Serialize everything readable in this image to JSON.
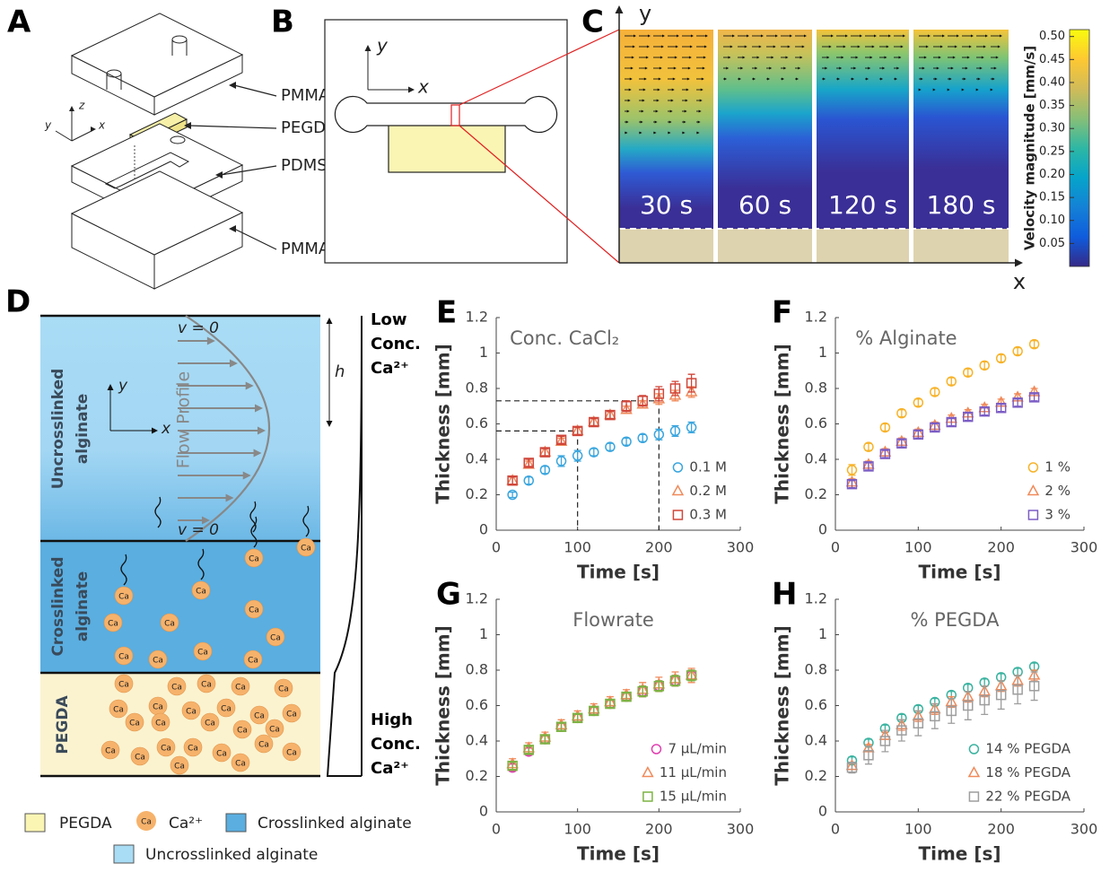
{
  "panel_labels": [
    "A",
    "B",
    "C",
    "D",
    "E",
    "F",
    "G",
    "H"
  ],
  "panel_a": {
    "layers": [
      "PMMA",
      "PEGDA",
      "PDMS",
      "PMMA"
    ],
    "axes": [
      "z",
      "y",
      "x"
    ]
  },
  "panel_b": {
    "axes": [
      "x",
      "y"
    ]
  },
  "panel_c": {
    "times": [
      "30 s",
      "60 s",
      "120 s",
      "180 s"
    ],
    "axes": [
      "y",
      "x"
    ],
    "colorbar": {
      "label": "Velocity magnitude [mm/s]",
      "lim": [
        0,
        0.515
      ],
      "ticks": [
        0.05,
        {
          "value": 0.1,
          "label": "0.10"
        },
        0.15,
        {
          "value": 0.2,
          "label": "0.20"
        },
        0.25,
        {
          "value": 0.3,
          "label": "0.30"
        },
        0.35,
        {
          "value": 0.4,
          "label": "0.40"
        },
        0.45,
        {
          "value": 0.5,
          "label": "0.50"
        }
      ],
      "colors": [
        "#352a87",
        "#0f5cdd",
        "#1481d6",
        "#06a4ca",
        "#2eb7a4",
        "#87bf77",
        "#d1bb59",
        "#fec832",
        "#f9fb0e"
      ]
    }
  },
  "panel_d": {
    "zero_velocity": "v = 0",
    "height": "h",
    "flow_label": "Flow Profile",
    "axes": [
      "y",
      "x"
    ],
    "regions": [
      [
        "Uncrosslinked",
        "alginate"
      ],
      [
        "Crosslinked",
        "alginate"
      ],
      [
        "PEGDA"
      ]
    ],
    "low": [
      "Low",
      "Conc.",
      "Ca²⁺"
    ],
    "high": [
      "High",
      "Conc.",
      "Ca²⁺"
    ],
    "ion": "Ca"
  },
  "legend": [
    "PEGDA",
    "Ca²⁺",
    "Crosslinked alginate",
    "Uncrosslinked alginate"
  ],
  "chart_data": [
    {
      "type": "scatter",
      "title": "Conc. CaCl₂",
      "xlabel": "Time [s]",
      "ylabel": "Thickness [mm]",
      "x": [
        20,
        40,
        60,
        80,
        100,
        120,
        140,
        160,
        180,
        200,
        220,
        240
      ],
      "xlim": [
        0,
        300
      ],
      "xticks": [
        0,
        100,
        200,
        300
      ],
      "ylim": [
        0,
        1.2
      ],
      "yticks": [
        0,
        0.2,
        0.4,
        0.6,
        0.8,
        1,
        1.2
      ],
      "legend": "lower right",
      "reference_lines": [
        {
          "x": 100,
          "y": 0.56
        },
        {
          "x": 200,
          "y": 0.73
        }
      ],
      "series": [
        {
          "name": "0.1 M",
          "color": "#3ba6de",
          "marker": "circle",
          "values": [
            0.2,
            0.28,
            0.34,
            0.39,
            0.42,
            0.44,
            0.47,
            0.5,
            0.52,
            0.54,
            0.56,
            0.58
          ],
          "errors": [
            0.015,
            0.02,
            0.02,
            0.03,
            0.03,
            0.02,
            0.02,
            0.02,
            0.02,
            0.03,
            0.03,
            0.03
          ]
        },
        {
          "name": "0.2 M",
          "color": "#f08a5a",
          "marker": "triangle",
          "values": [
            0.28,
            0.37,
            0.44,
            0.5,
            0.56,
            0.61,
            0.65,
            0.68,
            0.71,
            0.74,
            0.76,
            0.78
          ],
          "errors": [
            0.02,
            0.02,
            0.02,
            0.02,
            0.02,
            0.02,
            0.02,
            0.02,
            0.02,
            0.03,
            0.03,
            0.03
          ]
        },
        {
          "name": "0.3 M",
          "color": "#d0463a",
          "marker": "square",
          "values": [
            0.28,
            0.38,
            0.44,
            0.51,
            0.56,
            0.61,
            0.65,
            0.7,
            0.73,
            0.77,
            0.8,
            0.83
          ],
          "errors": [
            0.02,
            0.02,
            0.02,
            0.02,
            0.02,
            0.02,
            0.02,
            0.03,
            0.03,
            0.04,
            0.04,
            0.05
          ]
        }
      ]
    },
    {
      "type": "scatter",
      "title": "% Alginate",
      "xlabel": "Time [s]",
      "ylabel": "Thickness [mm]",
      "x": [
        20,
        40,
        60,
        80,
        100,
        120,
        140,
        160,
        180,
        200,
        220,
        240
      ],
      "xlim": [
        0,
        300
      ],
      "xticks": [
        0,
        100,
        200,
        300
      ],
      "ylim": [
        0,
        1.2
      ],
      "yticks": [
        0,
        0.2,
        0.4,
        0.6,
        0.8,
        1,
        1.2
      ],
      "legend": "lower right",
      "series": [
        {
          "name": "1 %",
          "color": "#f7b32b",
          "marker": "circle",
          "values": [
            0.34,
            0.47,
            0.58,
            0.66,
            0.72,
            0.78,
            0.84,
            0.89,
            0.93,
            0.97,
            1.01,
            1.05
          ],
          "errors": [
            0.03,
            0.02,
            0.02,
            0.02,
            0.02,
            0.02,
            0.02,
            0.02,
            0.02,
            0.02,
            0.02,
            0.02
          ]
        },
        {
          "name": "2 %",
          "color": "#f08a5a",
          "marker": "triangle",
          "values": [
            0.27,
            0.37,
            0.44,
            0.5,
            0.55,
            0.59,
            0.63,
            0.66,
            0.69,
            0.72,
            0.75,
            0.78
          ],
          "errors": [
            0.02,
            0.02,
            0.02,
            0.02,
            0.02,
            0.02,
            0.02,
            0.02,
            0.02,
            0.02,
            0.02,
            0.02
          ]
        },
        {
          "name": "3 %",
          "color": "#7b5cc4",
          "marker": "square",
          "values": [
            0.26,
            0.36,
            0.43,
            0.49,
            0.54,
            0.58,
            0.61,
            0.64,
            0.67,
            0.69,
            0.72,
            0.75
          ],
          "errors": [
            0.02,
            0.02,
            0.02,
            0.02,
            0.02,
            0.02,
            0.02,
            0.02,
            0.02,
            0.02,
            0.02,
            0.02
          ]
        }
      ]
    },
    {
      "type": "scatter",
      "title": "Flowrate",
      "xlabel": "Time [s]",
      "ylabel": "Thickness [mm]",
      "x": [
        20,
        40,
        60,
        80,
        100,
        120,
        140,
        160,
        180,
        200,
        220,
        240
      ],
      "xlim": [
        0,
        300
      ],
      "xticks": [
        0,
        100,
        200,
        300
      ],
      "ylim": [
        0,
        1.2
      ],
      "yticks": [
        0,
        0.2,
        0.4,
        0.6,
        0.8,
        1,
        1.2
      ],
      "legend": "lower right",
      "series": [
        {
          "name": "7 µL/min",
          "color": "#e040b0",
          "marker": "circle",
          "values": [
            0.25,
            0.34,
            0.41,
            0.48,
            0.53,
            0.57,
            0.61,
            0.65,
            0.68,
            0.71,
            0.74,
            0.77
          ],
          "errors": [
            0.02,
            0.02,
            0.02,
            0.02,
            0.02,
            0.02,
            0.02,
            0.02,
            0.03,
            0.03,
            0.03,
            0.03
          ]
        },
        {
          "name": "11 µL/min",
          "color": "#f08a5a",
          "marker": "triangle",
          "values": [
            0.27,
            0.36,
            0.42,
            0.49,
            0.54,
            0.58,
            0.62,
            0.66,
            0.69,
            0.72,
            0.75,
            0.77
          ],
          "errors": [
            0.03,
            0.03,
            0.03,
            0.03,
            0.03,
            0.03,
            0.03,
            0.03,
            0.04,
            0.04,
            0.04,
            0.04
          ]
        },
        {
          "name": "15 µL/min",
          "color": "#7cb342",
          "marker": "square",
          "values": [
            0.26,
            0.35,
            0.41,
            0.48,
            0.53,
            0.57,
            0.61,
            0.65,
            0.68,
            0.71,
            0.74,
            0.77
          ],
          "errors": [
            0.02,
            0.02,
            0.02,
            0.02,
            0.02,
            0.02,
            0.02,
            0.02,
            0.03,
            0.03,
            0.03,
            0.03
          ]
        }
      ]
    },
    {
      "type": "scatter",
      "title": "% PEGDA",
      "xlabel": "Time [s]",
      "ylabel": "Thickness [mm]",
      "x": [
        20,
        40,
        60,
        80,
        100,
        120,
        140,
        160,
        180,
        200,
        220,
        240
      ],
      "xlim": [
        0,
        300
      ],
      "xticks": [
        0,
        100,
        200,
        300
      ],
      "ylim": [
        0,
        1.2
      ],
      "yticks": [
        0,
        0.2,
        0.4,
        0.6,
        0.8,
        1,
        1.2
      ],
      "legend": "lower right",
      "series": [
        {
          "name": "14 % PEGDA",
          "color": "#3bb3a0",
          "marker": "circle",
          "values": [
            0.29,
            0.39,
            0.47,
            0.53,
            0.58,
            0.62,
            0.66,
            0.7,
            0.73,
            0.76,
            0.79,
            0.82
          ],
          "errors": [
            0.02,
            0.02,
            0.02,
            0.02,
            0.02,
            0.02,
            0.02,
            0.02,
            0.02,
            0.02,
            0.02,
            0.02
          ]
        },
        {
          "name": "18 % PEGDA",
          "color": "#f08a5a",
          "marker": "triangle",
          "values": [
            0.26,
            0.36,
            0.43,
            0.49,
            0.54,
            0.58,
            0.62,
            0.65,
            0.68,
            0.71,
            0.74,
            0.77
          ],
          "errors": [
            0.02,
            0.02,
            0.02,
            0.03,
            0.03,
            0.03,
            0.03,
            0.03,
            0.03,
            0.03,
            0.03,
            0.03
          ]
        },
        {
          "name": "22 % PEGDA",
          "color": "#9e9e9e",
          "marker": "square",
          "values": [
            0.25,
            0.32,
            0.4,
            0.46,
            0.5,
            0.54,
            0.57,
            0.6,
            0.63,
            0.66,
            0.69,
            0.71
          ],
          "errors": [
            0.03,
            0.05,
            0.06,
            0.06,
            0.07,
            0.07,
            0.07,
            0.08,
            0.08,
            0.08,
            0.08,
            0.08
          ]
        }
      ]
    }
  ]
}
